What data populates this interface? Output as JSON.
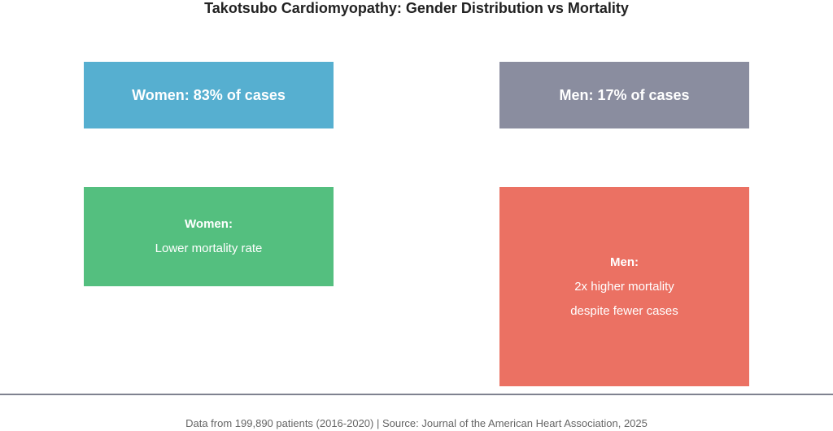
{
  "title": "Takotsubo Cardiomyopathy: Gender Distribution vs Mortality",
  "boxes": {
    "women_cases": {
      "text": "Women: 83% of cases",
      "color": "#56afd0"
    },
    "men_cases": {
      "text": "Men: 17% of cases",
      "color": "#8a8d9f"
    },
    "women_mortality": {
      "heading": "Women:",
      "line1": "Lower mortality rate",
      "color": "#54bf7f"
    },
    "men_mortality": {
      "heading": "Men:",
      "line1": "2x higher mortality",
      "line2": "despite fewer cases",
      "color": "#eb7163"
    }
  },
  "footer": "Data from 199,890 patients (2016-2020) | Source: Journal of the American Heart Association, 2025"
}
